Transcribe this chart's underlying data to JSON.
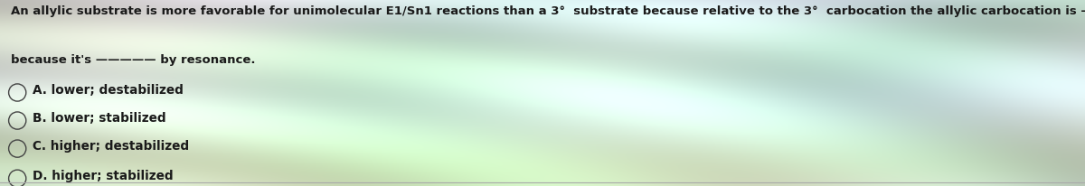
{
  "question_line1": "An allylic substrate is more favorable for unimolecular E1/Sn1 reactions than a 3°  substrate because relative to the 3°  carbocation the allylic carbocation is ————— in energy",
  "question_line2": "because it's ————— by resonance.",
  "options": [
    "A. lower; destabilized",
    "B. lower; stabilized",
    "C. higher; destabilized",
    "D. higher; stabilized"
  ],
  "text_color": "#1a1a1a",
  "circle_color": "#444444",
  "font_size_question": 9.5,
  "font_size_options": 9.8,
  "fig_width": 12.0,
  "fig_height": 2.07
}
